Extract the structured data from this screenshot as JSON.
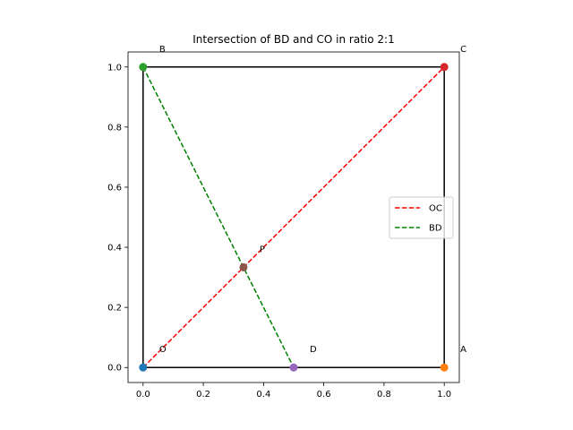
{
  "chart_data": {
    "type": "line",
    "title": "Intersection of BD and CO in ratio 2:1",
    "xlabel": "",
    "ylabel": "",
    "xlim": [
      -0.05,
      1.05
    ],
    "ylim": [
      -0.05,
      1.05
    ],
    "xticks": [
      "0.0",
      "0.2",
      "0.4",
      "0.6",
      "0.8",
      "1.0"
    ],
    "yticks": [
      "0.0",
      "0.2",
      "0.4",
      "0.6",
      "0.8",
      "1.0"
    ],
    "grid": false,
    "legend_position": "center-right",
    "square": {
      "x": [
        0,
        1,
        1,
        0,
        0
      ],
      "y": [
        0,
        0,
        1,
        1,
        0
      ],
      "color": "#000000"
    },
    "series": [
      {
        "name": "OC",
        "x": [
          0,
          1
        ],
        "y": [
          0,
          1
        ],
        "color": "#ff0000",
        "dashed": true
      },
      {
        "name": "BD",
        "x": [
          0,
          0.5
        ],
        "y": [
          1,
          0
        ],
        "color": "#008000",
        "dashed": true
      }
    ],
    "points": [
      {
        "label": "O",
        "x": 0,
        "y": 0,
        "color": "#1f77b4"
      },
      {
        "label": "A",
        "x": 1,
        "y": 0,
        "color": "#ff7f0e"
      },
      {
        "label": "B",
        "x": 0,
        "y": 1,
        "color": "#2ca02c"
      },
      {
        "label": "C",
        "x": 1,
        "y": 1,
        "color": "#d62728"
      },
      {
        "label": "D",
        "x": 0.5,
        "y": 0,
        "color": "#9467bd"
      },
      {
        "label": "P",
        "x": 0.3333,
        "y": 0.3333,
        "color": "#8c564b"
      }
    ]
  }
}
